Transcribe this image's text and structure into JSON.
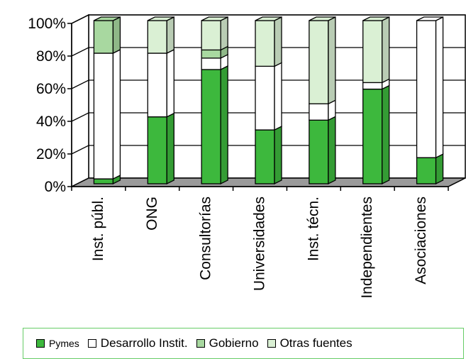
{
  "chart_data": {
    "type": "bar",
    "stacked": true,
    "three_d": true,
    "categories": [
      "Inst. públ.",
      "ONG",
      "Consultorías",
      "Universidades",
      "Inst. técn.",
      "Independientes",
      "Asociaciones"
    ],
    "series": [
      {
        "name": "Pymes",
        "color": "#3db83d",
        "values": [
          3,
          41,
          70,
          33,
          39,
          58,
          16
        ]
      },
      {
        "name": "Desarrollo Instit.",
        "color": "#ffffff",
        "values": [
          77,
          39,
          7,
          39,
          10,
          4,
          84
        ]
      },
      {
        "name": "Gobierno",
        "color": "#a8d8a0",
        "values": [
          20,
          0,
          5,
          0,
          0,
          0,
          0
        ]
      },
      {
        "name": "Otras fuentes",
        "color": "#daf0d4",
        "values": [
          0,
          20,
          18,
          28,
          51,
          38,
          0
        ]
      }
    ],
    "yticks": [
      "0%",
      "20%",
      "40%",
      "60%",
      "80%",
      "100%"
    ],
    "ylim": [
      0,
      100
    ],
    "grid": true,
    "legend_position": "bottom"
  }
}
